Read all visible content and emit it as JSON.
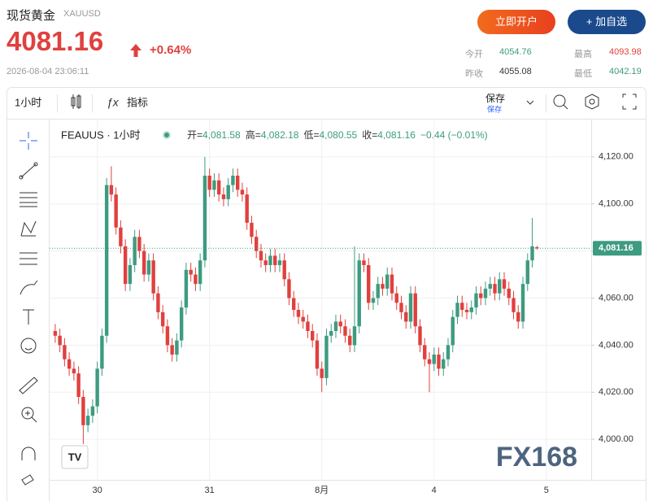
{
  "header": {
    "title": "现货黄金",
    "symbol": "XAUUSD",
    "price": "4081.16",
    "change": "+0.64%",
    "timestamp": "2026-08-04 23:06:11",
    "buttons": [
      "立即开户",
      "+ 加自选"
    ],
    "stats": [
      {
        "label": "今开",
        "value": "4054.76"
      },
      {
        "label": "最高",
        "value": "4093.98"
      },
      {
        "label": "昨收",
        "value": "4055.08"
      },
      {
        "label": "最低",
        "value": "4042.19"
      }
    ]
  },
  "toolbar": {
    "interval": "1小时",
    "indicators": "指标",
    "save": "保存",
    "save_sub": "保存"
  },
  "chart_data": {
    "type": "candlestick",
    "symbol_label": "FEAUUS · 1小时",
    "legend": [
      {
        "label": "开=",
        "value": "4,081.58"
      },
      {
        "label": "高=",
        "value": "4,082.18"
      },
      {
        "label": "低=",
        "value": "4,080.55"
      },
      {
        "label": "收=",
        "value": "4,081.16"
      }
    ],
    "legend_change": "−0.44 (−0.01%)",
    "up_color": "#3d9b80",
    "down_color": "#e0403e",
    "last_price": {
      "value": 4081.16,
      "label": "4,081.16"
    },
    "watermark": "FX168",
    "xlim": [
      -0.5,
      114.6
    ],
    "xticks": [
      {
        "value": 9,
        "label": "30"
      },
      {
        "value": 33,
        "label": "31"
      },
      {
        "value": 57,
        "label": "8月"
      },
      {
        "value": 81,
        "label": "4"
      },
      {
        "value": 105,
        "label": "5"
      }
    ],
    "ylim": [
      3984.5,
      4134.8
    ],
    "yticks": [
      {
        "value": 4000,
        "label": "4,000.00"
      },
      {
        "value": 4020,
        "label": "4,020.00"
      },
      {
        "value": 4040,
        "label": "4,040.00"
      },
      {
        "value": 4060,
        "label": "4,060.00"
      },
      {
        "value": 4080,
        "label": "4,080.00"
      },
      {
        "value": 4100,
        "label": "4,100.00"
      },
      {
        "value": 4120,
        "label": "4,120.00"
      }
    ],
    "x": [
      0,
      1,
      2,
      3,
      4,
      5,
      6,
      7,
      8,
      9,
      10,
      11,
      12,
      13,
      14,
      15,
      16,
      17,
      18,
      19,
      20,
      21,
      22,
      23,
      24,
      25,
      26,
      27,
      28,
      29,
      30,
      31,
      32,
      33,
      34,
      35,
      36,
      37,
      38,
      39,
      40,
      41,
      42,
      43,
      44,
      45,
      46,
      47,
      48,
      49,
      50,
      51,
      52,
      53,
      54,
      55,
      56,
      57,
      58,
      59,
      60,
      61,
      62,
      63,
      64,
      65,
      66,
      67,
      68,
      69,
      70,
      71,
      72,
      73,
      74,
      75,
      76,
      77,
      78,
      79,
      80,
      81,
      82,
      83,
      84,
      85,
      86,
      87,
      88,
      89,
      90,
      91,
      92,
      93,
      94,
      95,
      96,
      97,
      98,
      99,
      100,
      101,
      102,
      103
    ],
    "ohlc": [
      [
        4046,
        4049,
        4041,
        4044
      ],
      [
        4044,
        4047,
        4037,
        4040
      ],
      [
        4040,
        4043,
        4031,
        4034
      ],
      [
        4034,
        4037,
        4027,
        4030
      ],
      [
        4030,
        4033,
        4025,
        4028
      ],
      [
        4028,
        4031,
        4015,
        4018
      ],
      [
        4018,
        4021,
        3998,
        4006
      ],
      [
        4006,
        4013,
        4003,
        4010
      ],
      [
        4010,
        4017,
        4007,
        4014
      ],
      [
        4014,
        4033,
        4011,
        4030
      ],
      [
        4030,
        4047,
        4027,
        4044
      ],
      [
        4044,
        4111,
        4041,
        4108
      ],
      [
        4108,
        4116,
        4101,
        4104
      ],
      [
        4104,
        4107,
        4087,
        4090
      ],
      [
        4090,
        4093,
        4079,
        4082
      ],
      [
        4082,
        4085,
        4063,
        4066
      ],
      [
        4066,
        4077,
        4063,
        4074
      ],
      [
        4074,
        4089,
        4071,
        4086
      ],
      [
        4086,
        4089,
        4077,
        4080
      ],
      [
        4080,
        4083,
        4067,
        4070
      ],
      [
        4070,
        4079,
        4067,
        4076
      ],
      [
        4076,
        4079,
        4059,
        4062
      ],
      [
        4062,
        4065,
        4051,
        4054
      ],
      [
        4054,
        4057,
        4045,
        4048
      ],
      [
        4048,
        4051,
        4037,
        4040
      ],
      [
        4040,
        4043,
        4033,
        4036
      ],
      [
        4036,
        4045,
        4033,
        4042
      ],
      [
        4042,
        4059,
        4039,
        4056
      ],
      [
        4056,
        4075,
        4053,
        4072
      ],
      [
        4072,
        4075,
        4067,
        4070
      ],
      [
        4070,
        4073,
        4063,
        4066
      ],
      [
        4066,
        4079,
        4063,
        4076
      ],
      [
        4076,
        4120,
        4073,
        4112
      ],
      [
        4112,
        4115,
        4103,
        4106
      ],
      [
        4106,
        4113,
        4103,
        4110
      ],
      [
        4110,
        4113,
        4101,
        4104
      ],
      [
        4104,
        4107,
        4099,
        4102
      ],
      [
        4102,
        4111,
        4099,
        4108
      ],
      [
        4108,
        4115,
        4105,
        4112
      ],
      [
        4112,
        4115,
        4103,
        4106
      ],
      [
        4106,
        4109,
        4101,
        4104
      ],
      [
        4104,
        4107,
        4089,
        4092
      ],
      [
        4092,
        4095,
        4083,
        4086
      ],
      [
        4086,
        4089,
        4077,
        4080
      ],
      [
        4080,
        4083,
        4073,
        4076
      ],
      [
        4076,
        4079,
        4071,
        4074
      ],
      [
        4074,
        4081,
        4071,
        4078
      ],
      [
        4078,
        4081,
        4071,
        4074
      ],
      [
        4074,
        4079,
        4071,
        4076
      ],
      [
        4076,
        4079,
        4065,
        4068
      ],
      [
        4068,
        4071,
        4057,
        4060
      ],
      [
        4060,
        4063,
        4052,
        4055
      ],
      [
        4055,
        4058,
        4049,
        4052
      ],
      [
        4052,
        4055,
        4047,
        4050
      ],
      [
        4050,
        4053,
        4043,
        4046
      ],
      [
        4046,
        4049,
        4039,
        4042
      ],
      [
        4042,
        4045,
        4027,
        4030
      ],
      [
        4030,
        4033,
        4020,
        4026
      ],
      [
        4026,
        4047,
        4023,
        4044
      ],
      [
        4044,
        4049,
        4041,
        4046
      ],
      [
        4046,
        4053,
        4043,
        4050
      ],
      [
        4050,
        4053,
        4045,
        4048
      ],
      [
        4048,
        4051,
        4041,
        4044
      ],
      [
        4044,
        4047,
        4037,
        4040
      ],
      [
        4040,
        4082,
        4037,
        4048
      ],
      [
        4048,
        4079,
        4045,
        4076
      ],
      [
        4076,
        4079,
        4071,
        4074
      ],
      [
        4074,
        4077,
        4055,
        4058
      ],
      [
        4058,
        4063,
        4055,
        4060
      ],
      [
        4060,
        4069,
        4057,
        4066
      ],
      [
        4066,
        4069,
        4061,
        4064
      ],
      [
        4064,
        4073,
        4061,
        4070
      ],
      [
        4070,
        4073,
        4059,
        4062
      ],
      [
        4062,
        4065,
        4055,
        4058
      ],
      [
        4058,
        4061,
        4051,
        4054
      ],
      [
        4054,
        4057,
        4047,
        4050
      ],
      [
        4050,
        4065,
        4047,
        4062
      ],
      [
        4062,
        4065,
        4045,
        4048
      ],
      [
        4048,
        4051,
        4037,
        4040
      ],
      [
        4040,
        4043,
        4031,
        4034
      ],
      [
        4034,
        4037,
        4020,
        4032
      ],
      [
        4032,
        4039,
        4029,
        4036
      ],
      [
        4036,
        4039,
        4027,
        4030
      ],
      [
        4030,
        4037,
        4027,
        4034
      ],
      [
        4034,
        4043,
        4031,
        4040
      ],
      [
        4040,
        4055,
        4037,
        4052
      ],
      [
        4052,
        4061,
        4049,
        4058
      ],
      [
        4058,
        4061,
        4052,
        4055
      ],
      [
        4055,
        4058,
        4051,
        4054
      ],
      [
        4054,
        4059,
        4051,
        4056
      ],
      [
        4056,
        4065,
        4053,
        4062
      ],
      [
        4062,
        4065,
        4057,
        4060
      ],
      [
        4060,
        4067,
        4057,
        4064
      ],
      [
        4064,
        4069,
        4061,
        4066
      ],
      [
        4066,
        4069,
        4059,
        4062
      ],
      [
        4062,
        4071,
        4059,
        4068
      ],
      [
        4068,
        4071,
        4061,
        4064
      ],
      [
        4064,
        4067,
        4057,
        4060
      ],
      [
        4060,
        4063,
        4051,
        4054
      ],
      [
        4054,
        4057,
        4047,
        4050
      ],
      [
        4050,
        4069,
        4047,
        4066
      ],
      [
        4066,
        4079,
        4063,
        4076
      ],
      [
        4076,
        4094,
        4073,
        4082
      ],
      [
        4081.58,
        4082.18,
        4080.55,
        4081.16
      ]
    ]
  }
}
